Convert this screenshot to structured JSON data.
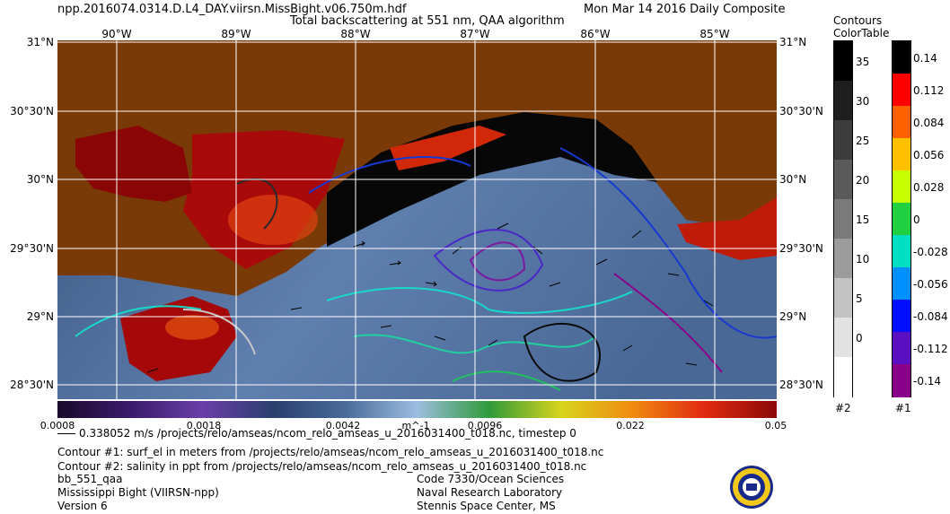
{
  "header": {
    "filename": "npp.2016074.0314.D.L4_DAY.viirsn.MissBight.v06.750m.hdf",
    "title": "Total backscattering at 551 nm, QAA algorithm",
    "date": "Mon Mar 14 2016 Daily Composite"
  },
  "axes": {
    "lon_labels": [
      "90°W",
      "89°W",
      "88°W",
      "87°W",
      "86°W",
      "85°W"
    ],
    "lat_labels": [
      "31°N",
      "30°30'N",
      "30°N",
      "29°30'N",
      "29°N",
      "28°30'N"
    ]
  },
  "colorbar": {
    "ticks": [
      "0.0008",
      "0.0018",
      "0.0042",
      "m^-1",
      "0.0096",
      "0.022",
      "0.05"
    ],
    "colors": [
      "#1a0a2a",
      "#3a1a6a",
      "#6a3ea8",
      "#2a3f6e",
      "#4a6a9a",
      "#9cbde0",
      "#2f9a3a",
      "#d8d41c",
      "#f08a10",
      "#e02a10",
      "#8a0808"
    ]
  },
  "legend": {
    "title_line1": "Contours",
    "title_line2": "ColorTable",
    "contour2": {
      "levels": [
        "35",
        "30",
        "25",
        "20",
        "15",
        "10",
        "5",
        "0"
      ],
      "colors": [
        "#000000",
        "#1e1e1e",
        "#3c3c3c",
        "#5a5a5a",
        "#7a7a7a",
        "#9c9c9c",
        "#c2c2c2",
        "#e2e2e2",
        "#ffffff"
      ],
      "footer": "#2"
    },
    "contour1": {
      "levels": [
        "0.14",
        "0.112",
        "0.084",
        "0.056",
        "0.028",
        "0",
        "-0.028",
        "-0.056",
        "-0.084",
        "-0.112",
        "-0.14"
      ],
      "colors": [
        "#000000",
        "#ff0000",
        "#ff6000",
        "#ffc000",
        "#c8ff00",
        "#20d040",
        "#00e0c0",
        "#0090ff",
        "#0010ff",
        "#5a10c0",
        "#8a008a"
      ],
      "footer": "#1"
    }
  },
  "footer": {
    "vector_line": "0.338052 m/s /projects/relo/amseas/ncom_relo_amseas_u_2016031400_t018.nc, timestep 0",
    "contour1_line": "Contour #1: surf_el in meters from /projects/relo/amseas/ncom_relo_amseas_u_2016031400_t018.nc",
    "contour2_line": "Contour #2: salinity in ppt from /projects/relo/amseas/ncom_relo_amseas_u_2016031400_t018.nc",
    "product": "bb_551_qaa",
    "region": "Mississippi Bight (VIIRSN-npp)",
    "version": "Version 6",
    "org_code": "Code 7330/Ocean Sciences",
    "org_name": "Naval Research Laboratory",
    "org_place": "Stennis Space Center, MS"
  }
}
